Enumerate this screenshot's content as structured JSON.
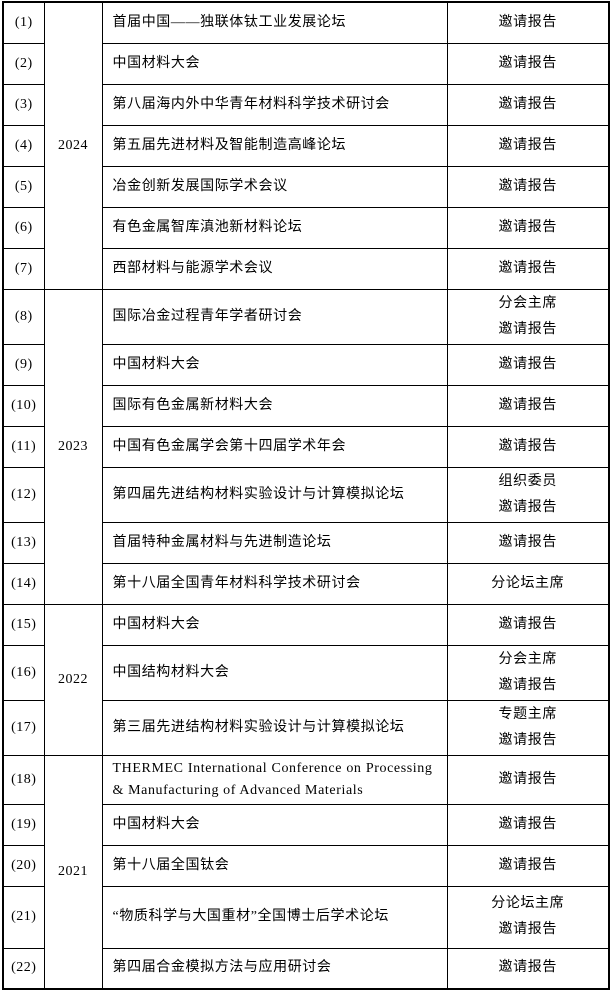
{
  "page": {
    "background_color": "#ffffff",
    "border_color": "#000000",
    "text_color": "#000000"
  },
  "groups": [
    {
      "year": "2024"
    },
    {
      "year": "2023"
    },
    {
      "year": "2022"
    },
    {
      "year": "2021"
    }
  ],
  "rows": [
    {
      "num": "(1)",
      "title": "首届中国——独联体钛工业发展论坛",
      "roles": [
        "邀请报告"
      ]
    },
    {
      "num": "(2)",
      "title": "中国材料大会",
      "roles": [
        "邀请报告"
      ]
    },
    {
      "num": "(3)",
      "title": "第八届海内外中华青年材料科学技术研讨会",
      "roles": [
        "邀请报告"
      ]
    },
    {
      "num": "(4)",
      "title": "第五届先进材料及智能制造高峰论坛",
      "roles": [
        "邀请报告"
      ]
    },
    {
      "num": "(5)",
      "title": "冶金创新发展国际学术会议",
      "roles": [
        "邀请报告"
      ]
    },
    {
      "num": "(6)",
      "title": "有色金属智库滇池新材料论坛",
      "roles": [
        "邀请报告"
      ]
    },
    {
      "num": "(7)",
      "title": "西部材料与能源学术会议",
      "roles": [
        "邀请报告"
      ]
    },
    {
      "num": "(8)",
      "title": "国际冶金过程青年学者研讨会",
      "roles": [
        "分会主席",
        "邀请报告"
      ]
    },
    {
      "num": "(9)",
      "title": "中国材料大会",
      "roles": [
        "邀请报告"
      ]
    },
    {
      "num": "(10)",
      "title": "国际有色金属新材料大会",
      "roles": [
        "邀请报告"
      ]
    },
    {
      "num": "(11)",
      "title": "中国有色金属学会第十四届学术年会",
      "roles": [
        "邀请报告"
      ]
    },
    {
      "num": "(12)",
      "title": "第四届先进结构材料实验设计与计算模拟论坛",
      "roles": [
        "组织委员",
        "邀请报告"
      ]
    },
    {
      "num": "(13)",
      "title": "首届特种金属材料与先进制造论坛",
      "roles": [
        "邀请报告"
      ]
    },
    {
      "num": "(14)",
      "title": "第十八届全国青年材料科学技术研讨会",
      "roles": [
        "分论坛主席"
      ]
    },
    {
      "num": "(15)",
      "title": "中国材料大会",
      "roles": [
        "邀请报告"
      ]
    },
    {
      "num": "(16)",
      "title": "中国结构材料大会",
      "roles": [
        "分会主席",
        "邀请报告"
      ]
    },
    {
      "num": "(17)",
      "title": "第三届先进结构材料实验设计与计算模拟论坛",
      "roles": [
        "专题主席",
        "邀请报告"
      ]
    },
    {
      "num": "(18)",
      "title": "THERMEC International Conference on Processing & Manufacturing of Advanced Materials",
      "roles": [
        "邀请报告"
      ]
    },
    {
      "num": "(19)",
      "title": "中国材料大会",
      "roles": [
        "邀请报告"
      ]
    },
    {
      "num": "(20)",
      "title": "第十八届全国钛会",
      "roles": [
        "邀请报告"
      ]
    },
    {
      "num": "(21)",
      "title": "“物质科学与大国重材”全国博士后学术论坛",
      "roles": [
        "分论坛主席",
        "邀请报告"
      ]
    },
    {
      "num": "(22)",
      "title": "第四届合金模拟方法与应用研讨会",
      "roles": [
        "邀请报告"
      ]
    }
  ]
}
